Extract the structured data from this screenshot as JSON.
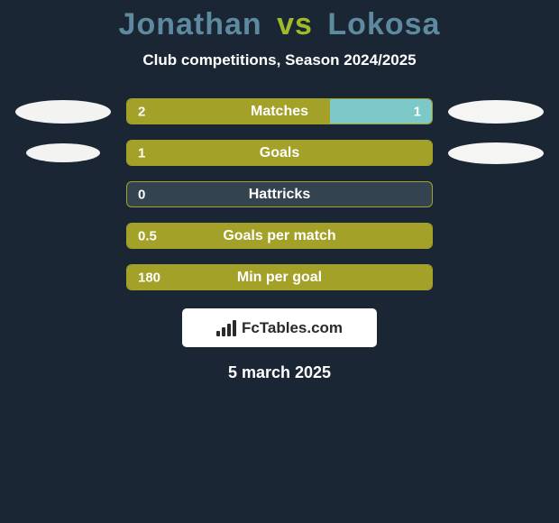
{
  "colors": {
    "background": "#1b2634",
    "text": "#ffffff",
    "title_p1": "#5e8a9f",
    "title_vs": "#9fbb2a",
    "title_p2": "#5e8a9f",
    "bar_track_bg": "#33434f",
    "left_fill": "#a3a128",
    "right_fill": "#7dc9c9",
    "marker_left": "#f3f3f1",
    "marker_right": "#f5f5f3",
    "logo_bg": "#ffffff",
    "logo_text": "#2a2a2a"
  },
  "title": {
    "p1": "Jonathan",
    "vs": "vs",
    "p2": "Lokosa"
  },
  "subtitle": "Club competitions, Season 2024/2025",
  "date": "5 march 2025",
  "logo": {
    "text": "FcTables.com"
  },
  "layout": {
    "bar_track_width": 340,
    "bar_track_height": 29,
    "bar_radius": 6,
    "row_gap": 17
  },
  "rows": [
    {
      "label": "Matches",
      "left_value": "2",
      "right_value": "1",
      "left_fill_pct": 66.7,
      "right_fill_pct": 33.3,
      "show_right_value": true,
      "marker_left": {
        "w": 106,
        "h": 26
      },
      "marker_right": {
        "w": 106,
        "h": 26
      }
    },
    {
      "label": "Goals",
      "left_value": "1",
      "right_value": "",
      "left_fill_pct": 100,
      "right_fill_pct": 0,
      "show_right_value": false,
      "marker_left": {
        "w": 82,
        "h": 21
      },
      "marker_right": {
        "w": 106,
        "h": 24
      }
    },
    {
      "label": "Hattricks",
      "left_value": "0",
      "right_value": "",
      "left_fill_pct": 0,
      "right_fill_pct": 0,
      "show_right_value": false,
      "marker_left": null,
      "marker_right": null
    },
    {
      "label": "Goals per match",
      "left_value": "0.5",
      "right_value": "",
      "left_fill_pct": 100,
      "right_fill_pct": 0,
      "show_right_value": false,
      "marker_left": null,
      "marker_right": null
    },
    {
      "label": "Min per goal",
      "left_value": "180",
      "right_value": "",
      "left_fill_pct": 100,
      "right_fill_pct": 0,
      "show_right_value": false,
      "marker_left": null,
      "marker_right": null
    }
  ]
}
